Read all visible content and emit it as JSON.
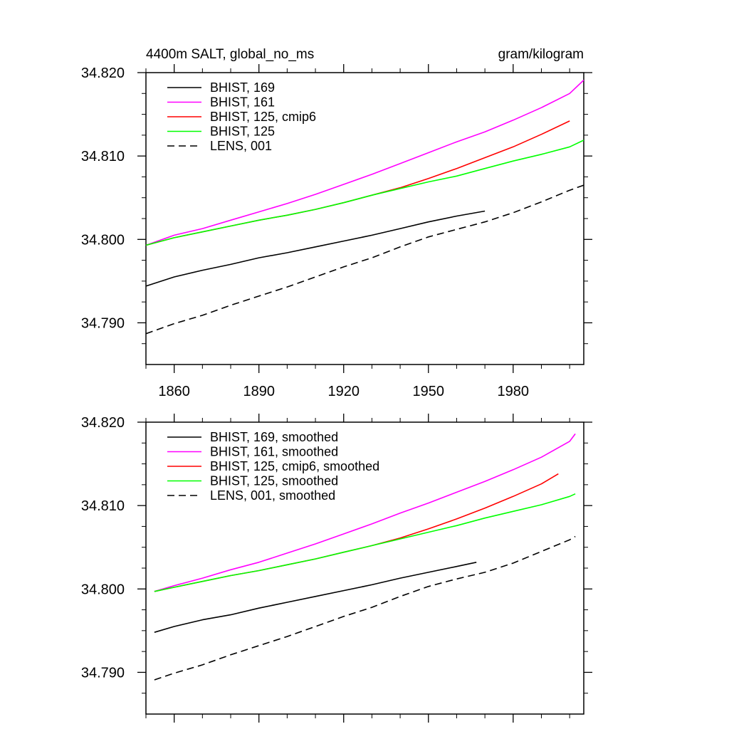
{
  "chart_data": [
    {
      "type": "line",
      "title_left": "4400m SALT, global_no_ms",
      "title_right": "gram/kilogram",
      "xlim": [
        1850,
        2005
      ],
      "ylim": [
        34.785,
        34.82
      ],
      "x_ticks": [
        1860,
        1890,
        1920,
        1950,
        1980
      ],
      "y_ticks": [
        "34.790",
        "34.800",
        "34.810",
        "34.820"
      ],
      "show_x_tick_labels": true,
      "legend_placement": "top-left",
      "series": [
        {
          "name": "BHIST, 169",
          "color": "#000000",
          "dash": "solid",
          "x": [
            1850,
            1860,
            1870,
            1880,
            1890,
            1900,
            1910,
            1920,
            1930,
            1940,
            1950,
            1960,
            1970
          ],
          "y": [
            34.7944,
            34.7955,
            34.7963,
            34.797,
            34.7978,
            34.7984,
            34.7991,
            34.7998,
            34.8005,
            34.8013,
            34.8021,
            34.8028,
            34.8034
          ]
        },
        {
          "name": "BHIST, 161",
          "color": "#ff00ff",
          "dash": "solid",
          "x": [
            1850,
            1860,
            1870,
            1880,
            1890,
            1900,
            1910,
            1920,
            1930,
            1940,
            1950,
            1960,
            1970,
            1980,
            1990,
            2000,
            2005
          ],
          "y": [
            34.7993,
            34.8005,
            34.8013,
            34.8023,
            34.8033,
            34.8043,
            34.8054,
            34.8066,
            34.8078,
            34.8091,
            34.8104,
            34.8117,
            34.8129,
            34.8143,
            34.8158,
            34.8175,
            34.8191
          ]
        },
        {
          "name": "BHIST, 125, cmip6",
          "color": "#ff0000",
          "dash": "solid",
          "x": [
            1850,
            1860,
            1870,
            1880,
            1890,
            1900,
            1910,
            1920,
            1930,
            1940,
            1950,
            1960,
            1970,
            1980,
            1990,
            2000
          ],
          "y": [
            34.7993,
            34.8002,
            34.8009,
            34.8016,
            34.8023,
            34.8029,
            34.8036,
            34.8044,
            34.8053,
            34.8062,
            34.8073,
            34.8085,
            34.8098,
            34.8111,
            34.8126,
            34.8142
          ]
        },
        {
          "name": "BHIST, 125",
          "color": "#00ff00",
          "dash": "solid",
          "x": [
            1850,
            1860,
            1870,
            1880,
            1890,
            1900,
            1910,
            1920,
            1930,
            1940,
            1950,
            1960,
            1970,
            1980,
            1990,
            2000,
            2005
          ],
          "y": [
            34.7993,
            34.8002,
            34.8009,
            34.8016,
            34.8023,
            34.8029,
            34.8036,
            34.8044,
            34.8053,
            34.8061,
            34.8069,
            34.8076,
            34.8085,
            34.8094,
            34.8102,
            34.8111,
            34.8119
          ]
        },
        {
          "name": "LENS, 001",
          "color": "#000000",
          "dash": "dashed",
          "x": [
            1850,
            1860,
            1870,
            1880,
            1890,
            1900,
            1910,
            1920,
            1930,
            1940,
            1950,
            1960,
            1970,
            1980,
            1990,
            2000,
            2005
          ],
          "y": [
            34.7887,
            34.7899,
            34.7909,
            34.7921,
            34.7932,
            34.7943,
            34.7955,
            34.7967,
            34.7978,
            34.7991,
            34.8003,
            34.8012,
            34.8021,
            34.8032,
            34.8045,
            34.8059,
            34.8065
          ]
        }
      ]
    },
    {
      "type": "line",
      "title_left": "",
      "title_right": "",
      "xlim": [
        1850,
        2005
      ],
      "ylim": [
        34.785,
        34.82
      ],
      "x_ticks": [
        1860,
        1890,
        1920,
        1950,
        1980
      ],
      "y_ticks": [
        "34.790",
        "34.800",
        "34.810",
        "34.820"
      ],
      "show_x_tick_labels": false,
      "legend_placement": "top-left",
      "series": [
        {
          "name": "BHIST, 169, smoothed",
          "color": "#000000",
          "dash": "solid",
          "x": [
            1853,
            1860,
            1870,
            1880,
            1890,
            1900,
            1910,
            1920,
            1930,
            1940,
            1950,
            1960,
            1967
          ],
          "y": [
            34.7948,
            34.7955,
            34.7963,
            34.7969,
            34.7977,
            34.7984,
            34.7991,
            34.7998,
            34.8005,
            34.8013,
            34.802,
            34.8027,
            34.8032
          ]
        },
        {
          "name": "BHIST, 161, smoothed",
          "color": "#ff00ff",
          "dash": "solid",
          "x": [
            1853,
            1860,
            1870,
            1880,
            1890,
            1900,
            1910,
            1920,
            1930,
            1940,
            1950,
            1960,
            1970,
            1980,
            1990,
            2000,
            2002
          ],
          "y": [
            34.7997,
            34.8004,
            34.8013,
            34.8023,
            34.8032,
            34.8043,
            34.8054,
            34.8066,
            34.8078,
            34.8091,
            34.8103,
            34.8116,
            34.8129,
            34.8143,
            34.8158,
            34.8177,
            34.8186
          ]
        },
        {
          "name": "BHIST, 125, cmip6, smoothed",
          "color": "#ff0000",
          "dash": "solid",
          "x": [
            1853,
            1860,
            1870,
            1880,
            1890,
            1900,
            1910,
            1920,
            1930,
            1940,
            1950,
            1960,
            1970,
            1980,
            1990,
            1996
          ],
          "y": [
            34.7997,
            34.8002,
            34.8009,
            34.8016,
            34.8022,
            34.8029,
            34.8036,
            34.8044,
            34.8052,
            34.8061,
            34.8072,
            34.8084,
            34.8097,
            34.8111,
            34.8126,
            34.8138
          ]
        },
        {
          "name": "BHIST, 125, smoothed",
          "color": "#00ff00",
          "dash": "solid",
          "x": [
            1853,
            1860,
            1870,
            1880,
            1890,
            1900,
            1910,
            1920,
            1930,
            1940,
            1950,
            1960,
            1970,
            1980,
            1990,
            2000,
            2002
          ],
          "y": [
            34.7997,
            34.8002,
            34.8009,
            34.8016,
            34.8022,
            34.8029,
            34.8036,
            34.8044,
            34.8052,
            34.806,
            34.8068,
            34.8076,
            34.8085,
            34.8093,
            34.8101,
            34.8111,
            34.8114
          ]
        },
        {
          "name": "LENS, 001, smoothed",
          "color": "#000000",
          "dash": "dashed",
          "x": [
            1853,
            1860,
            1870,
            1880,
            1890,
            1900,
            1910,
            1920,
            1930,
            1940,
            1950,
            1960,
            1970,
            1980,
            1990,
            2000,
            2002
          ],
          "y": [
            34.7891,
            34.7899,
            34.7909,
            34.7921,
            34.7932,
            34.7943,
            34.7955,
            34.7967,
            34.7978,
            34.7991,
            34.8003,
            34.8012,
            34.802,
            34.8031,
            34.8045,
            34.8059,
            34.8063
          ]
        }
      ]
    }
  ]
}
